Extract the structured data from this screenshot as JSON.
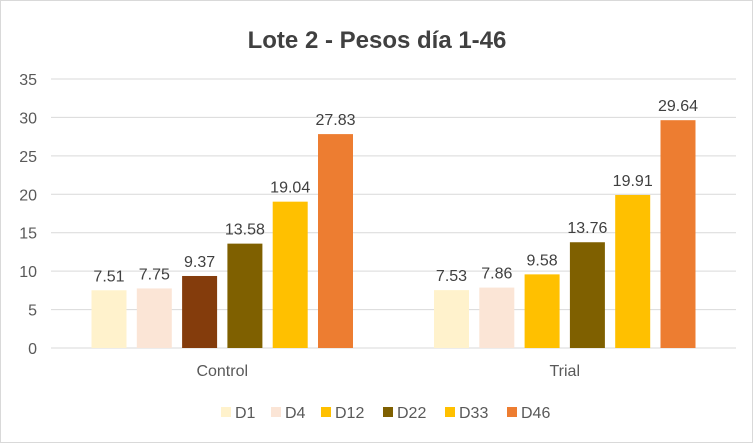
{
  "chart_data": {
    "type": "bar",
    "title": "Lote 2 - Pesos día 1-46",
    "xlabel": "",
    "ylabel": "",
    "ylim": [
      0,
      35
    ],
    "yticks": [
      0,
      5,
      10,
      15,
      20,
      25,
      30,
      35
    ],
    "grid": true,
    "legend_position": "bottom",
    "categories": [
      "Control",
      "Trial"
    ],
    "series": [
      {
        "name": "D1",
        "color": "#FFF2CC",
        "values": [
          7.51,
          7.53
        ]
      },
      {
        "name": "D4",
        "color": "#FBE5D6",
        "values": [
          7.75,
          7.86
        ]
      },
      {
        "name": "D12",
        "color": "#FFC000",
        "point_colors": [
          "#843C0C",
          "#FFC000"
        ],
        "values": [
          9.37,
          9.58
        ]
      },
      {
        "name": "D22",
        "color": "#7F6000",
        "values": [
          13.58,
          13.76
        ]
      },
      {
        "name": "D33",
        "color": "#FFC000",
        "values": [
          19.04,
          19.91
        ]
      },
      {
        "name": "D46",
        "color": "#ED7D31",
        "values": [
          27.83,
          29.64
        ]
      }
    ]
  }
}
